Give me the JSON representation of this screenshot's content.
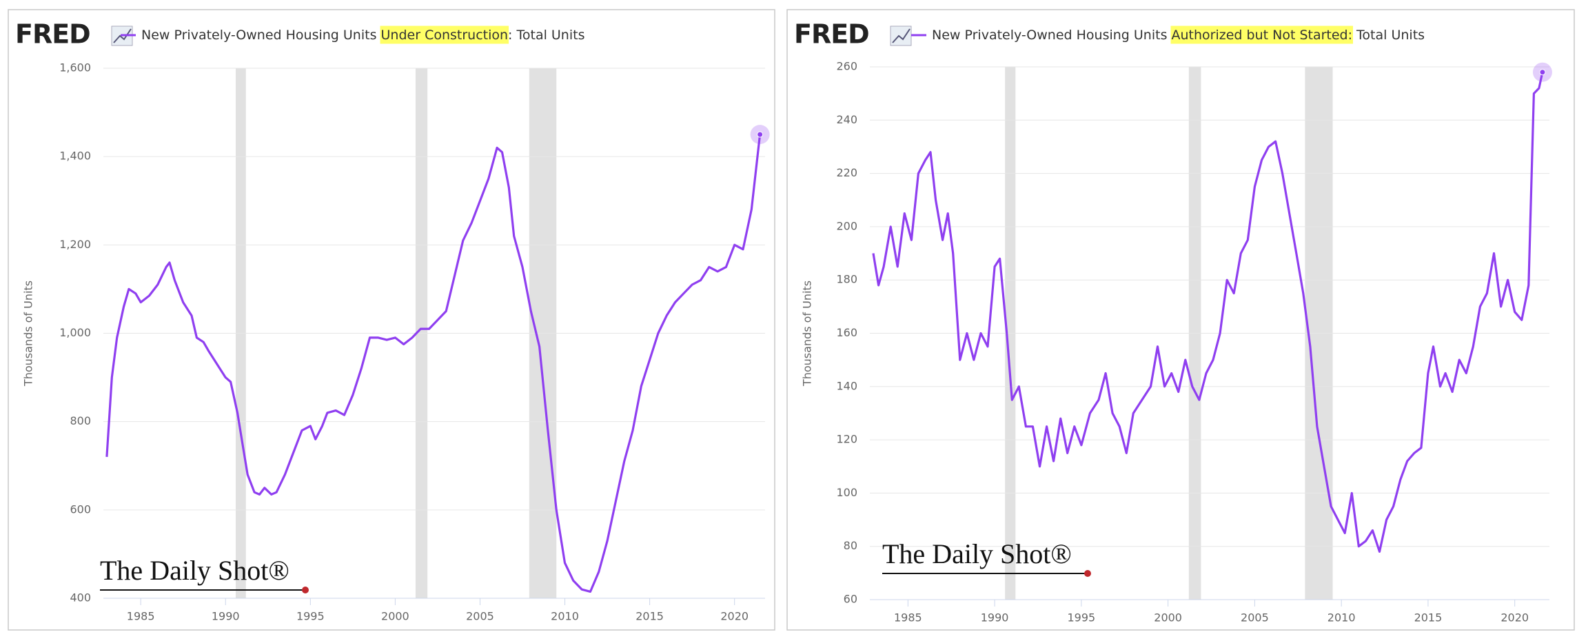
{
  "chart_data": [
    {
      "type": "line",
      "logo": "FRED",
      "title_parts": [
        "New Privately-Owned Housing Units ",
        "Under Construction",
        ": Total Units"
      ],
      "highlight_part": 1,
      "highlight_color": "#ffff66",
      "ylabel": "Thousands of Units",
      "watermark": "The Daily Shot®",
      "grid": true,
      "xlim": [
        1982.8,
        2021.8
      ],
      "xticks": [
        1985,
        1990,
        1995,
        2000,
        2005,
        2010,
        2015,
        2020
      ],
      "ylim": [
        400,
        1600
      ],
      "yticks": [
        {
          "value": 400,
          "label": "400"
        },
        {
          "value": 600,
          "label": "600"
        },
        {
          "value": 800,
          "label": "800"
        },
        {
          "value": 1000,
          "label": "1,000"
        },
        {
          "value": 1200,
          "label": "1,200"
        },
        {
          "value": 1400,
          "label": "1,400"
        },
        {
          "value": 1600,
          "label": "1,600"
        }
      ],
      "recessions": [
        [
          1990.6,
          1991.2
        ],
        [
          2001.2,
          2001.9
        ],
        [
          2007.9,
          2009.5
        ]
      ],
      "recession_color": "#e1e1e1",
      "x": [
        1983.0,
        1983.3,
        1983.6,
        1984.0,
        1984.3,
        1984.7,
        1985.0,
        1985.5,
        1986.0,
        1986.5,
        1986.7,
        1987.0,
        1987.5,
        1988.0,
        1988.3,
        1988.7,
        1989.0,
        1989.5,
        1990.0,
        1990.3,
        1990.7,
        1991.0,
        1991.3,
        1991.7,
        1992.0,
        1992.3,
        1992.7,
        1993.0,
        1993.5,
        1994.0,
        1994.5,
        1995.0,
        1995.3,
        1995.7,
        1996.0,
        1996.5,
        1997.0,
        1997.5,
        1998.0,
        1998.5,
        1999.0,
        1999.5,
        2000.0,
        2000.5,
        2001.0,
        2001.5,
        2002.0,
        2002.5,
        2003.0,
        2003.5,
        2004.0,
        2004.5,
        2005.0,
        2005.5,
        2006.0,
        2006.3,
        2006.7,
        2007.0,
        2007.5,
        2008.0,
        2008.5,
        2009.0,
        2009.5,
        2010.0,
        2010.5,
        2011.0,
        2011.5,
        2012.0,
        2012.5,
        2013.0,
        2013.5,
        2014.0,
        2014.5,
        2015.0,
        2015.5,
        2016.0,
        2016.5,
        2017.0,
        2017.5,
        2018.0,
        2018.5,
        2019.0,
        2019.5,
        2020.0,
        2020.5,
        2021.0,
        2021.5
      ],
      "series": [
        {
          "name": "New Privately-Owned Housing Units Under Construction: Total Units",
          "color": "#8f3ff0",
          "values": [
            720,
            900,
            990,
            1060,
            1100,
            1090,
            1070,
            1085,
            1110,
            1150,
            1160,
            1120,
            1070,
            1040,
            990,
            980,
            960,
            930,
            900,
            890,
            820,
            750,
            680,
            640,
            635,
            650,
            635,
            640,
            680,
            730,
            780,
            790,
            760,
            790,
            820,
            825,
            815,
            860,
            920,
            990,
            990,
            985,
            990,
            975,
            990,
            1010,
            1010,
            1030,
            1050,
            1130,
            1210,
            1250,
            1300,
            1350,
            1420,
            1410,
            1330,
            1220,
            1150,
            1050,
            970,
            780,
            600,
            480,
            440,
            420,
            415,
            460,
            530,
            620,
            710,
            780,
            880,
            940,
            1000,
            1040,
            1070,
            1090,
            1110,
            1120,
            1150,
            1140,
            1150,
            1200,
            1190,
            1280,
            1450
          ]
        }
      ]
    },
    {
      "type": "line",
      "logo": "FRED",
      "title_parts": [
        "New Privately-Owned Housing Units ",
        "Authorized but Not Started:",
        " Total Units"
      ],
      "highlight_part": 1,
      "highlight_color": "#ffff66",
      "ylabel": "Thousands of Units",
      "watermark": "The Daily Shot®",
      "grid": true,
      "xlim": [
        1982.8,
        2022.0
      ],
      "xticks": [
        1985,
        1990,
        1995,
        2000,
        2005,
        2010,
        2015,
        2020
      ],
      "ylim": [
        60,
        260
      ],
      "yticks": [
        60,
        80,
        100,
        120,
        140,
        160,
        180,
        200,
        220,
        240,
        260
      ],
      "recessions": [
        [
          1990.6,
          1991.2
        ],
        [
          2001.2,
          2001.9
        ],
        [
          2007.9,
          2009.5
        ]
      ],
      "recession_color": "#e1e1e1",
      "x": [
        1983.0,
        1983.3,
        1983.6,
        1984.0,
        1984.4,
        1984.8,
        1985.2,
        1985.6,
        1986.0,
        1986.3,
        1986.6,
        1987.0,
        1987.3,
        1987.6,
        1988.0,
        1988.4,
        1988.8,
        1989.2,
        1989.6,
        1990.0,
        1990.3,
        1990.7,
        1991.0,
        1991.4,
        1991.8,
        1992.2,
        1992.6,
        1993.0,
        1993.4,
        1993.8,
        1994.2,
        1994.6,
        1995.0,
        1995.5,
        1996.0,
        1996.4,
        1996.8,
        1997.2,
        1997.6,
        1998.0,
        1998.5,
        1999.0,
        1999.4,
        1999.8,
        2000.2,
        2000.6,
        2001.0,
        2001.4,
        2001.8,
        2002.2,
        2002.6,
        2003.0,
        2003.4,
        2003.8,
        2004.2,
        2004.6,
        2005.0,
        2005.4,
        2005.8,
        2006.2,
        2006.6,
        2007.0,
        2007.4,
        2007.8,
        2008.2,
        2008.6,
        2009.0,
        2009.4,
        2009.8,
        2010.2,
        2010.6,
        2011.0,
        2011.4,
        2011.8,
        2012.2,
        2012.6,
        2013.0,
        2013.4,
        2013.8,
        2014.2,
        2014.6,
        2015.0,
        2015.3,
        2015.7,
        2016.0,
        2016.4,
        2016.8,
        2017.2,
        2017.6,
        2018.0,
        2018.4,
        2018.8,
        2019.2,
        2019.6,
        2020.0,
        2020.4,
        2020.8,
        2021.1,
        2021.4,
        2021.6
      ],
      "series": [
        {
          "name": "New Privately-Owned Housing Units Authorized but Not Started: Total Units",
          "color": "#8f3ff0",
          "values": [
            190,
            178,
            185,
            200,
            185,
            205,
            195,
            220,
            225,
            228,
            210,
            195,
            205,
            190,
            150,
            160,
            150,
            160,
            155,
            185,
            188,
            160,
            135,
            140,
            125,
            125,
            110,
            125,
            112,
            128,
            115,
            125,
            118,
            130,
            135,
            145,
            130,
            125,
            115,
            130,
            135,
            140,
            155,
            140,
            145,
            138,
            150,
            140,
            135,
            145,
            150,
            160,
            180,
            175,
            190,
            195,
            215,
            225,
            230,
            232,
            220,
            205,
            190,
            175,
            155,
            125,
            110,
            95,
            90,
            85,
            100,
            80,
            82,
            86,
            78,
            90,
            95,
            105,
            112,
            115,
            117,
            145,
            155,
            140,
            145,
            138,
            150,
            145,
            155,
            170,
            175,
            190,
            170,
            180,
            168,
            165,
            178,
            250,
            252,
            258
          ]
        }
      ]
    }
  ]
}
